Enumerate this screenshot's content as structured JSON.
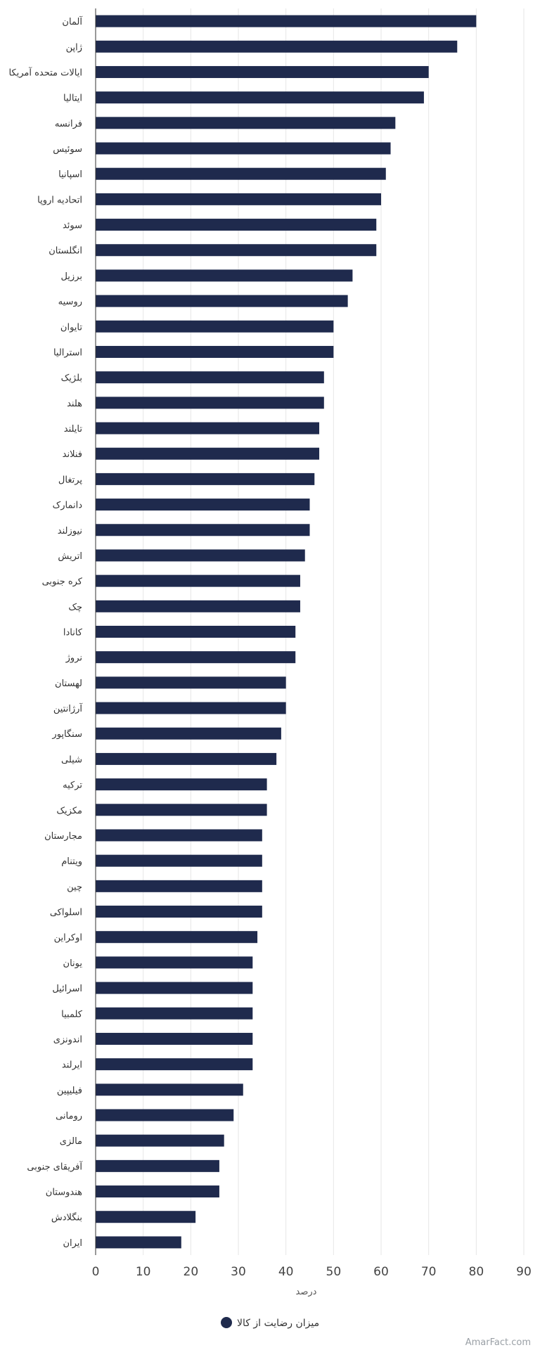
{
  "chart_data": {
    "type": "bar",
    "orientation": "horizontal",
    "categories": [
      "آلمان",
      "ژاپن",
      "ایالات متحده آمریکا",
      "ایتالیا",
      "فرانسه",
      "سوئیس",
      "اسپانیا",
      "اتحادیه اروپا",
      "سوئد",
      "انگلستان",
      "برزیل",
      "روسیه",
      "تایوان",
      "استرالیا",
      "بلژیک",
      "هلند",
      "تایلند",
      "فنلاند",
      "پرتغال",
      "دانمارک",
      "نیوزلند",
      "اتریش",
      "کره جنوبی",
      "چک",
      "کانادا",
      "نروژ",
      "لهستان",
      "آرژانتین",
      "سنگاپور",
      "شیلی",
      "ترکیه",
      "مکزیک",
      "مجارستان",
      "ویتنام",
      "چین",
      "اسلواکی",
      "اوکراین",
      "یونان",
      "اسرائیل",
      "کلمبیا",
      "اندونزی",
      "ایرلند",
      "فیلیپین",
      "رومانی",
      "مالزی",
      "آفریقای جنوبی",
      "هندوستان",
      "بنگلادش",
      "ایران"
    ],
    "series": [
      {
        "name": "میزان رضایت از کالا",
        "color": "#1f2a4d",
        "values": [
          80,
          76,
          70,
          69,
          63,
          62,
          61,
          60,
          59,
          59,
          54,
          53,
          50,
          50,
          48,
          48,
          47,
          47,
          46,
          45,
          45,
          44,
          43,
          43,
          42,
          42,
          40,
          40,
          39,
          38,
          36,
          36,
          35,
          35,
          35,
          35,
          34,
          33,
          33,
          33,
          33,
          33,
          31,
          29,
          27,
          26,
          26,
          21,
          18
        ]
      }
    ],
    "xlabel": "درصد",
    "xlim": [
      0,
      90
    ],
    "xticks": [
      "0",
      "10",
      "20",
      "30",
      "40",
      "50",
      "60",
      "70",
      "80",
      "90"
    ],
    "grid": true,
    "legend_position": "bottom"
  },
  "watermark": "AmarFact.com"
}
